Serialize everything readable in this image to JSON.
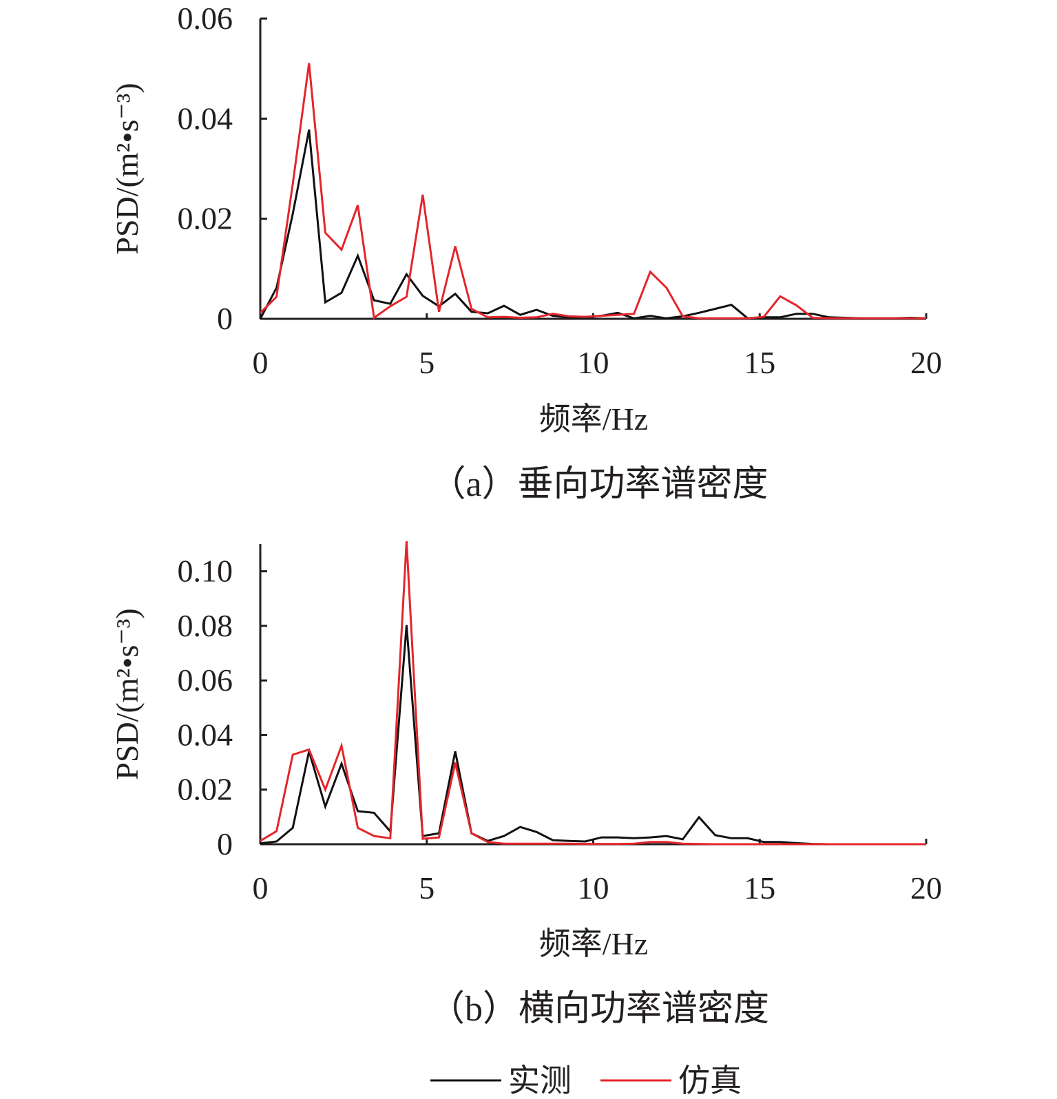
{
  "x_step_hz": 0.488,
  "legend": [
    {
      "label": "实测",
      "color": "#111111"
    },
    {
      "label": "仿真",
      "color": "#e3262b"
    }
  ],
  "chart_data": [
    {
      "type": "line",
      "title": "（a）垂向功率谱密度",
      "xlabel": "频率/Hz",
      "ylabel": "PSD/(m²•s⁻³)",
      "xlim": [
        0,
        20
      ],
      "ylim": [
        0,
        0.06
      ],
      "xticks": [
        "0",
        "5",
        "10",
        "15",
        "20"
      ],
      "xtick_values": [
        0,
        5,
        10,
        15,
        20
      ],
      "yticks": [
        "0",
        "0.02",
        "0.04",
        "0.06"
      ],
      "ytick_values": [
        0,
        0.02,
        0.04,
        0.06
      ],
      "series": [
        {
          "name": "实测",
          "color": "#111111",
          "values": [
            0,
            0.0062,
            0.021,
            0.0378,
            0.0033,
            0.0052,
            0.0126,
            0.0037,
            0.003,
            0.0089,
            0.0046,
            0.0025,
            0.005,
            0.0014,
            0.0011,
            0.0026,
            0.0008,
            0.0018,
            0.0006,
            0.0003,
            0.0003,
            0.0006,
            0.0012,
            0.0001,
            0.0006,
            0.0001,
            0.0005,
            0.0012,
            0.002,
            0.0028,
            0.0001,
            0.0003,
            0.0003,
            0.001,
            0.001,
            0.0003,
            0.0002,
            0.0001,
            0.0001,
            0.0001,
            0.0002,
            0.0001
          ]
        },
        {
          "name": "仿真",
          "color": "#e3262b",
          "values": [
            0.0012,
            0.0044,
            0.027,
            0.0511,
            0.0172,
            0.0138,
            0.0227,
            0.0002,
            0.0025,
            0.0044,
            0.0248,
            0.0014,
            0.0145,
            0.002,
            0.0003,
            0.0004,
            0.0002,
            0.0003,
            0.001,
            0.0005,
            0.0004,
            0.0006,
            0.0008,
            0.001,
            0.0094,
            0.0062,
            0.0005,
            0.0001,
            0.0001,
            0.0001,
            0.0001,
            0.0004,
            0.0045,
            0.0027,
            0.0002,
            0.0001,
            0.0001,
            0.0001,
            0.0001,
            0.0001,
            0.0001,
            0.0001
          ]
        }
      ]
    },
    {
      "type": "line",
      "title": "（b）横向功率谱密度",
      "xlabel": "频率/Hz",
      "ylabel": "PSD/(m²•s⁻³)",
      "xlim": [
        0,
        20
      ],
      "ylim": [
        0,
        0.11
      ],
      "xticks": [
        "0",
        "5",
        "10",
        "15",
        "20"
      ],
      "xtick_values": [
        0,
        5,
        10,
        15,
        20
      ],
      "yticks": [
        "0",
        "0.02",
        "0.04",
        "0.06",
        "0.08",
        "0.10"
      ],
      "ytick_values": [
        0,
        0.02,
        0.04,
        0.06,
        0.08,
        0.1
      ],
      "series": [
        {
          "name": "实测",
          "color": "#111111",
          "values": [
            0.0003,
            0.001,
            0.006,
            0.034,
            0.0138,
            0.0295,
            0.0121,
            0.0115,
            0.0047,
            0.0803,
            0.003,
            0.004,
            0.034,
            0.004,
            0.0012,
            0.003,
            0.0063,
            0.0045,
            0.0015,
            0.0012,
            0.001,
            0.0025,
            0.0025,
            0.0022,
            0.0025,
            0.003,
            0.0018,
            0.0099,
            0.0033,
            0.0022,
            0.0022,
            0.0008,
            0.0008,
            0.0004,
            0.0001,
            0,
            0,
            0,
            0,
            0,
            0,
            0
          ]
        },
        {
          "name": "仿真",
          "color": "#e3262b",
          "values": [
            0.0012,
            0.0048,
            0.0328,
            0.0347,
            0.02,
            0.0361,
            0.006,
            0.003,
            0.0022,
            0.111,
            0.002,
            0.0025,
            0.0299,
            0.004,
            0.0008,
            0.0002,
            0.0002,
            0.0002,
            0.0002,
            0.0002,
            0.0001,
            0.0001,
            0.0001,
            0.0002,
            0.0008,
            0.0008,
            0.0002,
            0.0001,
            0,
            0,
            0,
            0,
            0,
            0,
            0,
            0,
            0,
            0,
            0,
            0,
            0,
            0
          ]
        }
      ]
    }
  ]
}
